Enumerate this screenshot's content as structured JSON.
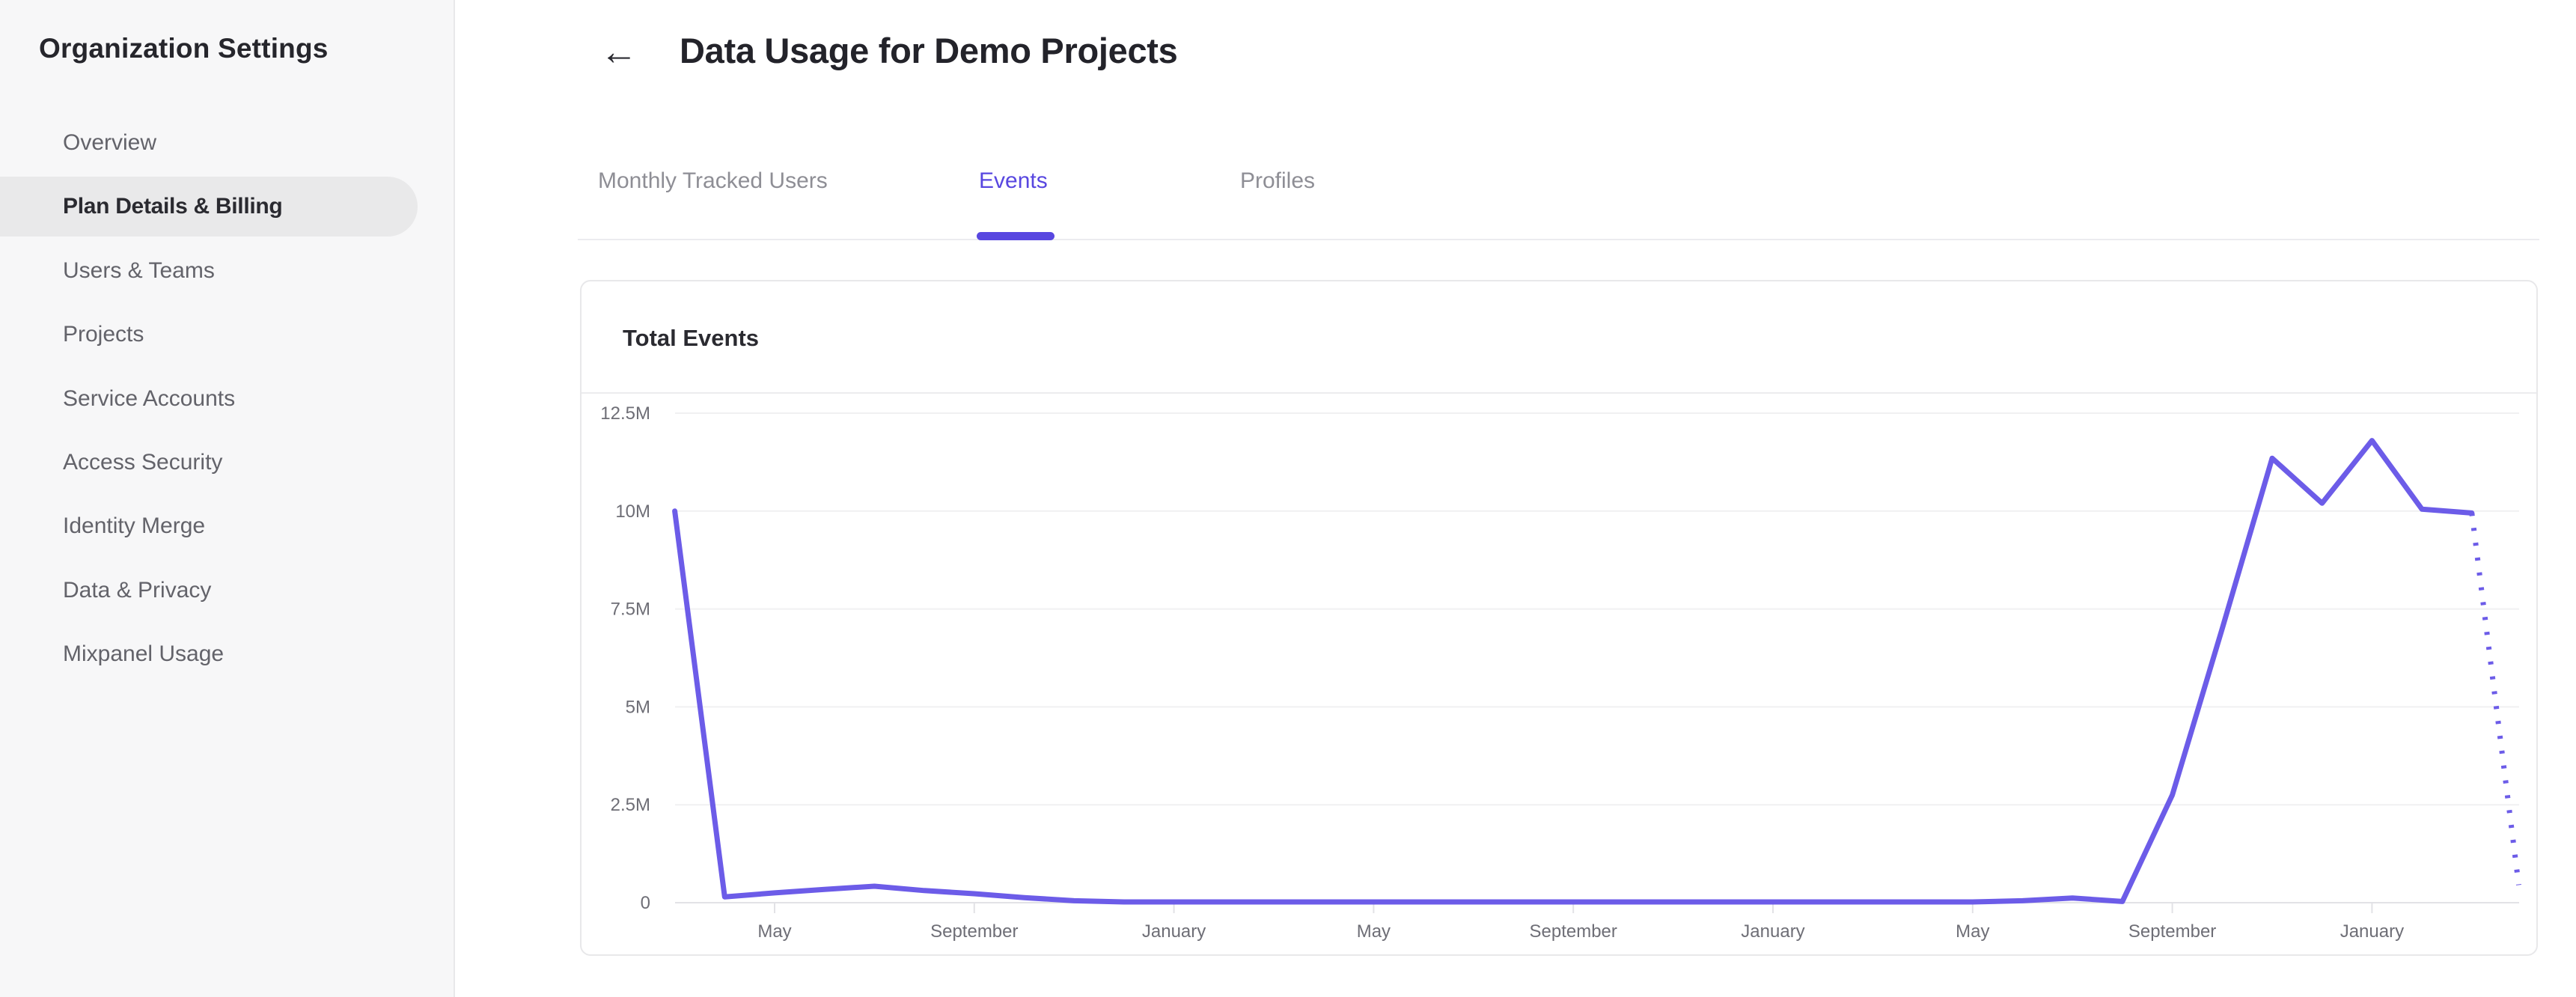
{
  "sidebar": {
    "title": "Organization Settings",
    "items": [
      {
        "label": "Overview",
        "active": false
      },
      {
        "label": "Plan Details & Billing",
        "active": true
      },
      {
        "label": "Users & Teams",
        "active": false
      },
      {
        "label": "Projects",
        "active": false
      },
      {
        "label": "Service Accounts",
        "active": false
      },
      {
        "label": "Access Security",
        "active": false
      },
      {
        "label": "Identity Merge",
        "active": false
      },
      {
        "label": "Data & Privacy",
        "active": false
      },
      {
        "label": "Mixpanel Usage",
        "active": false
      }
    ]
  },
  "header": {
    "back_icon": "←",
    "title": "Data Usage for Demo Projects"
  },
  "tabs": [
    {
      "label": "Monthly Tracked Users",
      "active": false
    },
    {
      "label": "Events",
      "active": true
    },
    {
      "label": "Profiles",
      "active": false
    }
  ],
  "card": {
    "title": "Total Events"
  },
  "colors": {
    "accent": "#5847e0",
    "line": "#6c5ce8",
    "sidebar_bg": "#f7f7f8",
    "pill_bg": "#e9e9ea",
    "grid": "#f0f0f2",
    "axis": "#e2e2e6",
    "axis_text": "#6e6e76"
  },
  "chart_data": {
    "type": "line",
    "title": "Total Events",
    "xlabel": "",
    "ylabel": "",
    "ylim": [
      0,
      12.5
    ],
    "ytick_values": [
      0,
      2.5,
      5,
      7.5,
      10,
      12.5
    ],
    "ytick_labels": [
      "0",
      "2.5M",
      "5M",
      "7.5M",
      "10M",
      "12.5M"
    ],
    "grid": "horizontal",
    "legend": "none",
    "months": [
      "2021-03",
      "2021-04",
      "2021-05",
      "2021-06",
      "2021-07",
      "2021-08",
      "2021-09",
      "2021-10",
      "2021-11",
      "2021-12",
      "2022-01",
      "2022-02",
      "2022-03",
      "2022-04",
      "2022-05",
      "2022-06",
      "2022-07",
      "2022-08",
      "2022-09",
      "2022-10",
      "2022-11",
      "2022-12",
      "2023-01",
      "2023-02",
      "2023-03",
      "2023-04",
      "2023-05",
      "2023-06",
      "2023-07",
      "2023-08",
      "2023-09",
      "2023-10",
      "2023-11",
      "2023-12",
      "2024-01",
      "2024-02",
      "2024-03"
    ],
    "values_millions": [
      10,
      0.15,
      0.25,
      0.34,
      0.42,
      0.31,
      0.23,
      0.13,
      0.05,
      0.02,
      0.02,
      0.02,
      0.02,
      0.02,
      0.02,
      0.02,
      0.02,
      0.02,
      0.02,
      0.02,
      0.02,
      0.02,
      0.02,
      0.02,
      0.02,
      0.02,
      0.02,
      0.05,
      0.12,
      0.03,
      2.75,
      7,
      11.35,
      10.2,
      11.8,
      10.05,
      9.95
    ],
    "projected_point": {
      "month": "2024-04",
      "value_millions": 0.45,
      "style": "dotted"
    },
    "xtick_indices": [
      2,
      6,
      10,
      14,
      18,
      22,
      26,
      30,
      34
    ],
    "xtick_labels": [
      "May",
      "September",
      "January",
      "May",
      "September",
      "January",
      "May",
      "September",
      "January"
    ]
  }
}
